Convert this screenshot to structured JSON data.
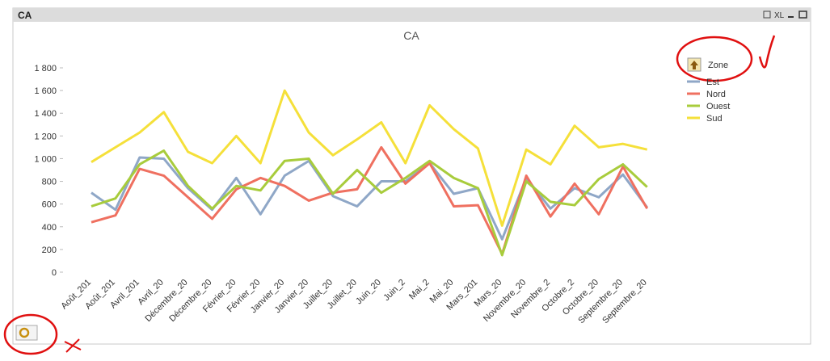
{
  "window_title": "CA",
  "window_button": "XL",
  "chart_data": {
    "type": "line",
    "title": "CA",
    "legend_title": "Zone",
    "categories": [
      "Août_201",
      "Août_201",
      "Avril_201",
      "Avril_20",
      "Décembre_20",
      "Décembre_20",
      "Février_20",
      "Février_20",
      "Janvier_20",
      "Janvier_20",
      "Juillet_20",
      "Juillet_20",
      "Juin_20",
      "Juin_2",
      "Mai_2",
      "Mai_20",
      "Mars_201",
      "Mars_20",
      "Novembre_20",
      "Novembre_2",
      "Octobre_2",
      "Octobre_20",
      "Septembre_20",
      "Septembre_20"
    ],
    "ylim": [
      0,
      1800
    ],
    "yticks": [
      0,
      200,
      400,
      600,
      800,
      {
        "value": 1000,
        "label": "1 000"
      },
      {
        "value": 1200,
        "label": "1 200"
      },
      {
        "value": 1400,
        "label": "1 400"
      },
      {
        "value": 1600,
        "label": "1 600"
      },
      {
        "value": 1800,
        "label": "1 800"
      }
    ],
    "series": [
      {
        "name": "Est",
        "color": "#8fa7c7",
        "values": [
          700,
          550,
          1010,
          1000,
          740,
          550,
          830,
          510,
          850,
          980,
          670,
          580,
          800,
          800,
          960,
          690,
          740,
          290,
          830,
          560,
          740,
          660,
          860,
          570
        ]
      },
      {
        "name": "Nord",
        "color": "#ef7060",
        "values": [
          440,
          500,
          910,
          850,
          660,
          470,
          730,
          830,
          760,
          630,
          700,
          730,
          1100,
          780,
          960,
          580,
          590,
          160,
          850,
          490,
          780,
          510,
          930,
          560
        ]
      },
      {
        "name": "Ouest",
        "color": "#a8cc3c",
        "values": [
          580,
          650,
          950,
          1070,
          760,
          560,
          760,
          720,
          980,
          1000,
          690,
          900,
          700,
          830,
          980,
          830,
          740,
          150,
          800,
          620,
          590,
          820,
          950,
          750
        ]
      },
      {
        "name": "Sud",
        "color": "#f5e03a",
        "values": [
          970,
          1100,
          1230,
          1410,
          1060,
          960,
          1200,
          960,
          1600,
          1230,
          1030,
          1170,
          1320,
          960,
          1470,
          1260,
          1090,
          410,
          1080,
          950,
          1290,
          1100,
          1130,
          1080
        ]
      }
    ]
  }
}
